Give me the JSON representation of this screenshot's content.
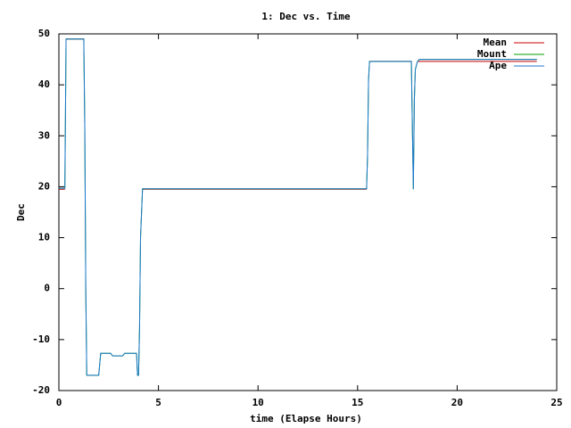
{
  "chart_data": {
    "type": "line",
    "title": "1: Dec vs. Time",
    "x_label": "time (Elapse Hours)",
    "y_label": "Dec",
    "x": [
      0,
      0.3,
      0.33,
      0.36,
      1.25,
      1.3,
      1.35,
      1.4,
      2.0,
      2.1,
      2.6,
      2.7,
      3.2,
      3.3,
      3.9,
      3.95,
      4.0,
      4.05,
      4.1,
      4.2,
      5.2,
      14.2,
      15.45,
      15.5,
      15.55,
      15.6,
      17.7,
      17.75,
      17.8,
      17.85,
      17.9,
      18.0,
      18.1,
      24.0
    ],
    "series": [
      {
        "name": "Mean",
        "color": "#cc0000",
        "values": [
          19.5,
          19.5,
          null,
          49,
          49,
          null,
          null,
          null,
          null,
          null,
          null,
          null,
          null,
          null,
          null,
          null,
          null,
          null,
          null,
          19.5,
          19.5,
          19.5,
          19.5,
          null,
          null,
          44.6,
          44.6,
          null,
          null,
          null,
          null,
          44.6,
          44.6,
          44.6
        ]
      },
      {
        "name": "Mount",
        "color": "#00a000",
        "values": [
          19.7,
          19.7,
          34,
          49,
          49,
          32,
          0,
          -17,
          -17,
          -12.7,
          -12.7,
          -13.2,
          -13.2,
          -12.7,
          -12.7,
          -17,
          -17,
          -8,
          10,
          19.6,
          19.6,
          19.6,
          19.6,
          26,
          41,
          44.6,
          44.6,
          32,
          19.5,
          37,
          43,
          44.5,
          45,
          45
        ]
      },
      {
        "name": "Ape",
        "color": "#1f77d0",
        "values": [
          19.7,
          19.7,
          34,
          49,
          49,
          32,
          0,
          -17,
          -17,
          -12.7,
          -12.7,
          -13.2,
          -13.2,
          -12.7,
          -12.7,
          -17,
          -17,
          -8,
          10,
          19.6,
          19.6,
          19.6,
          19.6,
          26,
          41,
          44.6,
          44.6,
          32,
          19.5,
          37,
          43,
          44.5,
          45,
          45
        ]
      }
    ],
    "xlim": [
      0,
      25
    ],
    "xticks": [
      0,
      5,
      10,
      15,
      20,
      25
    ],
    "ylim": [
      -20,
      50
    ],
    "yticks": [
      -20,
      -10,
      0,
      10,
      20,
      30,
      40,
      50
    ],
    "grid": false,
    "legend": "top-right"
  }
}
